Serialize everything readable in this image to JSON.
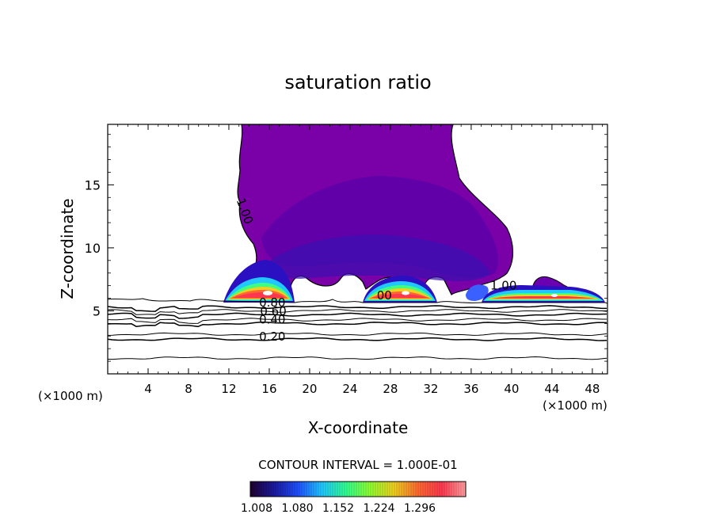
{
  "chart_data": {
    "type": "contour",
    "title": "saturation ratio",
    "xlabel": "X-coordinate",
    "ylabel": "Z-coordinate",
    "x_unit_left": "(×1000 m)",
    "x_unit_right": "(×1000 m)",
    "xlim": [
      0,
      49.5
    ],
    "ylim": [
      0,
      19.8
    ],
    "xticks": [
      4,
      8,
      12,
      16,
      20,
      24,
      28,
      32,
      36,
      40,
      44,
      48
    ],
    "yticks": [
      5,
      10,
      15
    ],
    "contour_interval_text": "CONTOUR INTERVAL = 1.000E-01",
    "colorbar": {
      "ticks": [
        "1.008",
        "1.080",
        "1.152",
        "1.224",
        "1.296"
      ],
      "colors": [
        "#200030",
        "#1a1aa0",
        "#2050ff",
        "#20c8ff",
        "#30ff90",
        "#90ff30",
        "#f0d020",
        "#ff6a30",
        "#ff3850",
        "#ffa0a0"
      ]
    },
    "contour_labels": [
      {
        "text": "1.00",
        "x": 13.2,
        "y": 12.8,
        "rotate": 70
      },
      {
        "text": "1.00",
        "x": 39.2,
        "y": 6.7,
        "rotate": 0
      },
      {
        "text": "00",
        "x": 27.4,
        "y": 5.9,
        "rotate": 0
      },
      {
        "text": "0.80",
        "x": 16.3,
        "y": 5.35,
        "rotate": 0
      },
      {
        "text": "0.60",
        "x": 16.4,
        "y": 4.65,
        "rotate": 0
      },
      {
        "text": "0.40",
        "x": 16.3,
        "y": 4.0,
        "rotate": 0
      },
      {
        "text": "0.20",
        "x": 16.3,
        "y": 2.65,
        "rotate": 0
      }
    ],
    "subsat_contours": [
      {
        "level": 0.2,
        "y": 2.75,
        "width": 1.5
      },
      {
        "level": 0.3,
        "y": 3.15,
        "width": 1
      },
      {
        "level": 0.4,
        "y": 4.0,
        "width": 1.5
      },
      {
        "level": 0.5,
        "y": 4.3,
        "width": 1
      },
      {
        "level": 0.6,
        "y": 4.7,
        "width": 1.5
      },
      {
        "level": 0.7,
        "y": 5.0,
        "width": 1
      },
      {
        "level": 0.8,
        "y": 5.3,
        "width": 1.5
      },
      {
        "level": 0.1,
        "y": 1.25,
        "width": 1
      }
    ]
  }
}
